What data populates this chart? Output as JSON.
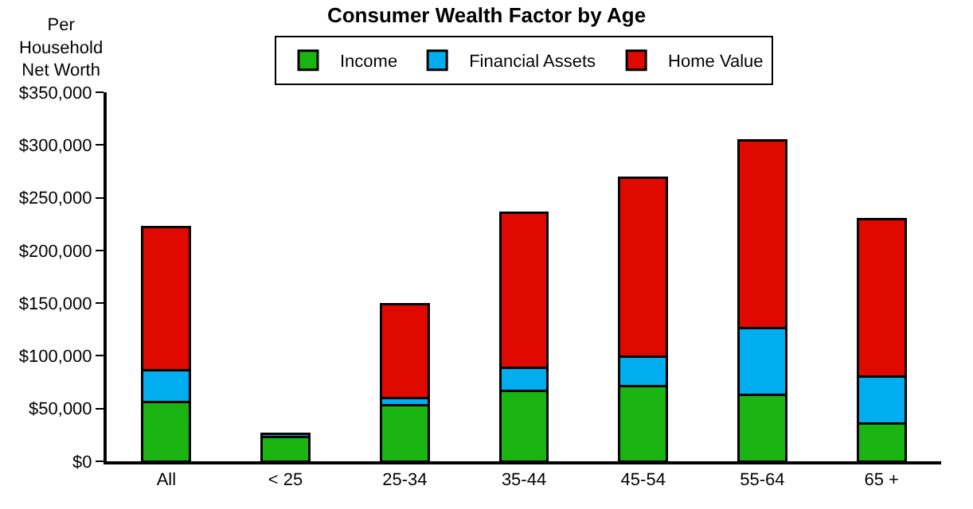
{
  "chart_data": {
    "type": "bar",
    "stacked": true,
    "title": "Consumer Wealth Factor by Age",
    "ylabel": "Per\nHousehold\nNet Worth",
    "categories": [
      "All",
      "< 25",
      "25-34",
      "35-44",
      "45-54",
      "55-64",
      "65 +"
    ],
    "series": [
      {
        "name": "Income",
        "color": "#1bb513",
        "values": [
          56000,
          23000,
          53000,
          67000,
          71000,
          63000,
          36000
        ]
      },
      {
        "name": "Financial Assets",
        "color": "#00adef",
        "values": [
          30000,
          3000,
          7000,
          22000,
          28000,
          63000,
          44000
        ]
      },
      {
        "name": "Home Value",
        "color": "#df0900",
        "values": [
          136000,
          null,
          89000,
          147000,
          170000,
          178000,
          150000
        ]
      }
    ],
    "ylim": [
      0,
      350000
    ],
    "yticks": [
      {
        "value": 0,
        "label": "$0"
      },
      {
        "value": 50000,
        "label": "$50,000"
      },
      {
        "value": 100000,
        "label": "$100,000"
      },
      {
        "value": 150000,
        "label": "$150,000"
      },
      {
        "value": 200000,
        "label": "$200,000"
      },
      {
        "value": 250000,
        "label": "$250,000"
      },
      {
        "value": 300000,
        "label": "$300,000"
      },
      {
        "value": 350000,
        "label": "$350,000"
      }
    ],
    "legend": "top"
  }
}
